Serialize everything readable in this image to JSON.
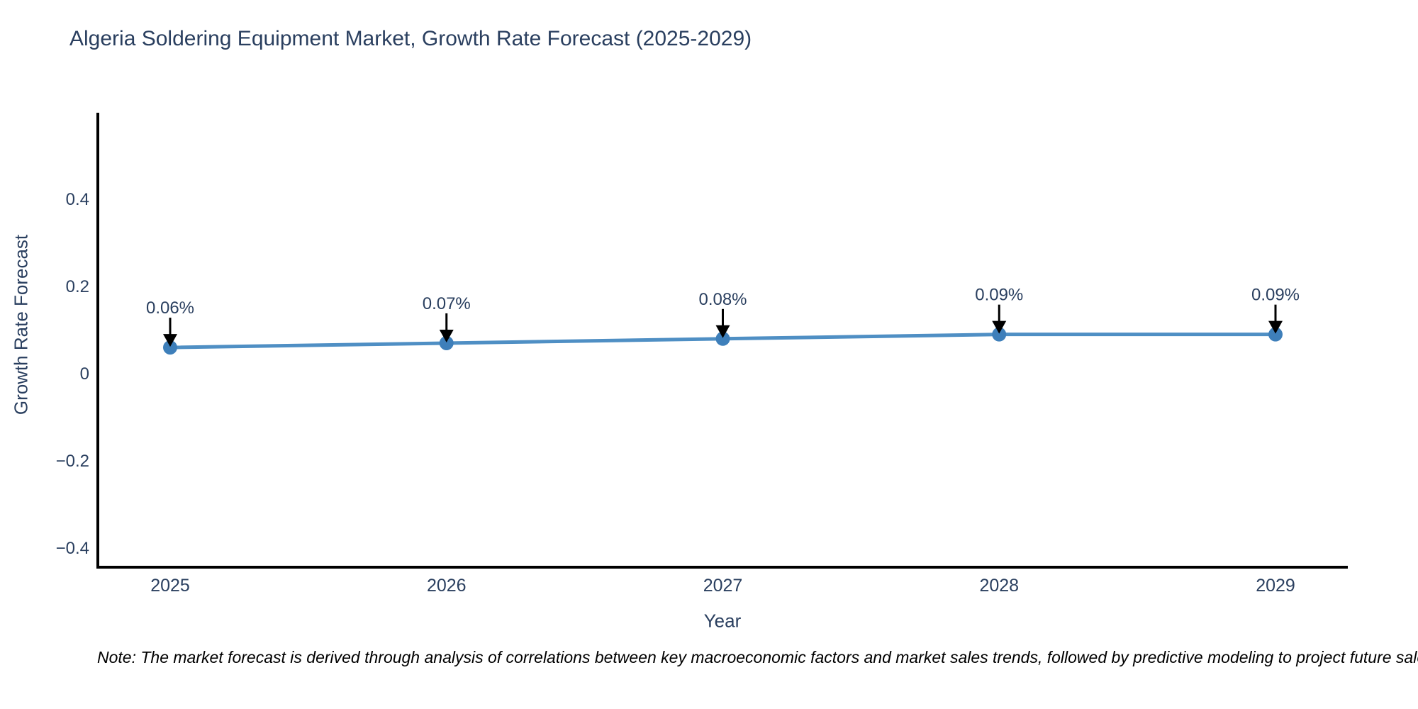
{
  "chart_data": {
    "type": "line",
    "title": "Algeria Soldering Equipment Market, Growth Rate Forecast (2025-2029)",
    "xlabel": "Year",
    "ylabel": "Growth Rate Forecast",
    "categories": [
      "2025",
      "2026",
      "2027",
      "2028",
      "2029"
    ],
    "series": [
      {
        "name": "Growth Rate Forecast",
        "values": [
          0.06,
          0.07,
          0.08,
          0.09,
          0.09
        ]
      }
    ],
    "point_labels": [
      "0.06%",
      "0.07%",
      "0.08%",
      "0.09%",
      "0.09%"
    ],
    "ytick_values": [
      0.4,
      0.2,
      0,
      -0.2,
      -0.4
    ],
    "ytick_labels": [
      "0.4",
      "0.2",
      "0",
      "−0.2",
      "−0.4"
    ],
    "ylim": [
      -0.444,
      0.598
    ],
    "grid": false,
    "legend": false,
    "annotation_arrows": true,
    "colors": {
      "line": "#4f8fc4",
      "marker": "#3e7fba",
      "axis": "#000000",
      "text": "#2a3f5f",
      "arrow": "#000000",
      "background": "#ffffff"
    }
  },
  "note": {
    "text": "Note: The market forecast is derived through analysis of correlations between key macroeconomic factors and market sales trends, followed by predictive modeling to project future sales."
  }
}
